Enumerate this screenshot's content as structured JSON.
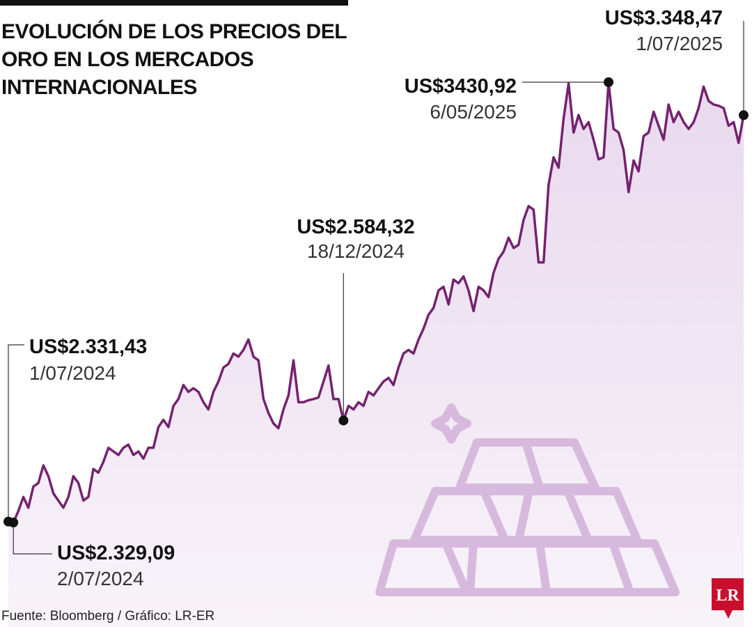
{
  "chart_data": {
    "type": "line",
    "title": "EVOLUCIÓN DE LOS PRECIOS DEL ORO EN LOS MERCADOS INTERNACIONALES",
    "color": "#74226f",
    "values": [
      2331.43,
      2329.09,
      2358,
      2393,
      2366,
      2419,
      2428,
      2472,
      2445,
      2402,
      2384,
      2366,
      2393,
      2445,
      2428,
      2384,
      2393,
      2463,
      2454,
      2481,
      2516,
      2507,
      2498,
      2516,
      2524,
      2498,
      2507,
      2489,
      2516,
      2516,
      2568,
      2586,
      2568,
      2621,
      2638,
      2673,
      2656,
      2665,
      2656,
      2630,
      2612,
      2656,
      2682,
      2717,
      2726,
      2752,
      2744,
      2761,
      2787,
      2744,
      2735,
      2638,
      2603,
      2577,
      2565,
      2612,
      2647,
      2735,
      2630,
      2630,
      2635,
      2638,
      2642,
      2682,
      2722,
      2638,
      2638,
      2584.32,
      2621,
      2612,
      2630,
      2621,
      2656,
      2647,
      2665,
      2682,
      2691,
      2673,
      2717,
      2752,
      2761,
      2752,
      2787,
      2814,
      2849,
      2866,
      2910,
      2919,
      2875,
      2937,
      2928,
      2945,
      2910,
      2858,
      2919,
      2910,
      2893,
      2954,
      2989,
      3007,
      3042,
      3016,
      3024,
      3086,
      3121,
      3112,
      2980,
      2980,
      3173,
      3243,
      3217,
      3340,
      3428,
      3305,
      3349,
      3314,
      3331,
      3287,
      3238,
      3243,
      3430.92,
      3314,
      3305,
      3261,
      3156,
      3235,
      3208,
      3296,
      3305,
      3357,
      3322,
      3287,
      3375,
      3331,
      3357,
      3331,
      3314,
      3331,
      3366,
      3420,
      3384,
      3375,
      3372,
      3366,
      3322,
      3331,
      3279,
      3348.47
    ],
    "annotations": [
      {
        "value": 2331.43,
        "value_label": "US$2.331,43",
        "date": "1/07/2024"
      },
      {
        "value": 2329.09,
        "value_label": "US$2.329,09",
        "date": "2/07/2024"
      },
      {
        "value": 2584.32,
        "value_label": "US$2.584,32",
        "date": "18/12/2024"
      },
      {
        "value": 3430.92,
        "value_label": "US$3430,92",
        "date": "6/05/2025"
      },
      {
        "value": 3348.47,
        "value_label": "US$3.348,47",
        "date": "1/07/2025"
      }
    ],
    "source": "Fuente: Bloomberg / Gráfico: LR-ER",
    "logo": "LR"
  }
}
